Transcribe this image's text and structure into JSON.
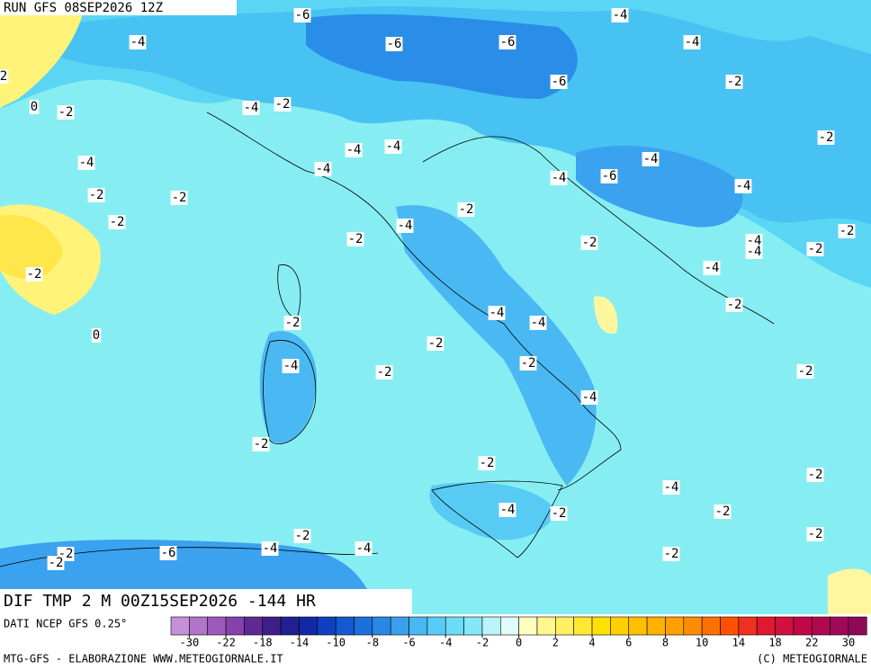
{
  "header": {
    "run": "RUN GFS 08SEP2026 12Z"
  },
  "map": {
    "title": "DIF TMP 2 M 00Z15SEP2026 -144 HR",
    "contour_labels": [
      -6,
      -4,
      -4,
      -6,
      -6,
      -4,
      2,
      -6,
      -2,
      0,
      -2,
      -4,
      -2,
      -2,
      -4,
      -4,
      -4,
      -4,
      -4,
      -4,
      -6,
      -4,
      -2,
      -2,
      -2,
      -2,
      -4,
      -2,
      -2,
      -2,
      -4,
      -4,
      -2,
      -2,
      -4,
      -2,
      -4,
      -4,
      -2,
      0,
      -2,
      -4,
      -2,
      -2,
      -2,
      -4,
      -2,
      -2,
      -2,
      -4,
      -4,
      -2,
      -2,
      -2,
      -2,
      -4,
      -2,
      -2,
      -6,
      -2,
      -4
    ]
  },
  "colorbar": {
    "source": "DATI NCEP GFS 0.25°",
    "labels": [
      -30,
      -22,
      -18,
      -14,
      -10,
      -8,
      -6,
      -4,
      -2,
      0,
      2,
      4,
      6,
      8,
      10,
      14,
      18,
      22,
      30
    ],
    "colors": [
      "#c490d6",
      "#b174ca",
      "#9c5aba",
      "#8442aa",
      "#5e2a92",
      "#3e1e88",
      "#202090",
      "#1228a8",
      "#1040c0",
      "#1458d2",
      "#1c70dc",
      "#2a88e4",
      "#3aa0ec",
      "#48b8f2",
      "#58ccf6",
      "#6cdcf8",
      "#84e8fa",
      "#b8f4f8",
      "#e0fcfc",
      "#ffffc0",
      "#fff890",
      "#fff060",
      "#ffe830",
      "#ffe000",
      "#ffd000",
      "#ffc000",
      "#ffb000",
      "#ffa000",
      "#ff8c00",
      "#ff7000",
      "#ff5000",
      "#f03020",
      "#e01830",
      "#d01040",
      "#c00848",
      "#b00850",
      "#a00858",
      "#900858"
    ]
  },
  "footer": {
    "left": "MTG-GFS - ELABORAZIONE WWW.METEOGIORNALE.IT",
    "right": "(C) METEOGIORNALE"
  }
}
